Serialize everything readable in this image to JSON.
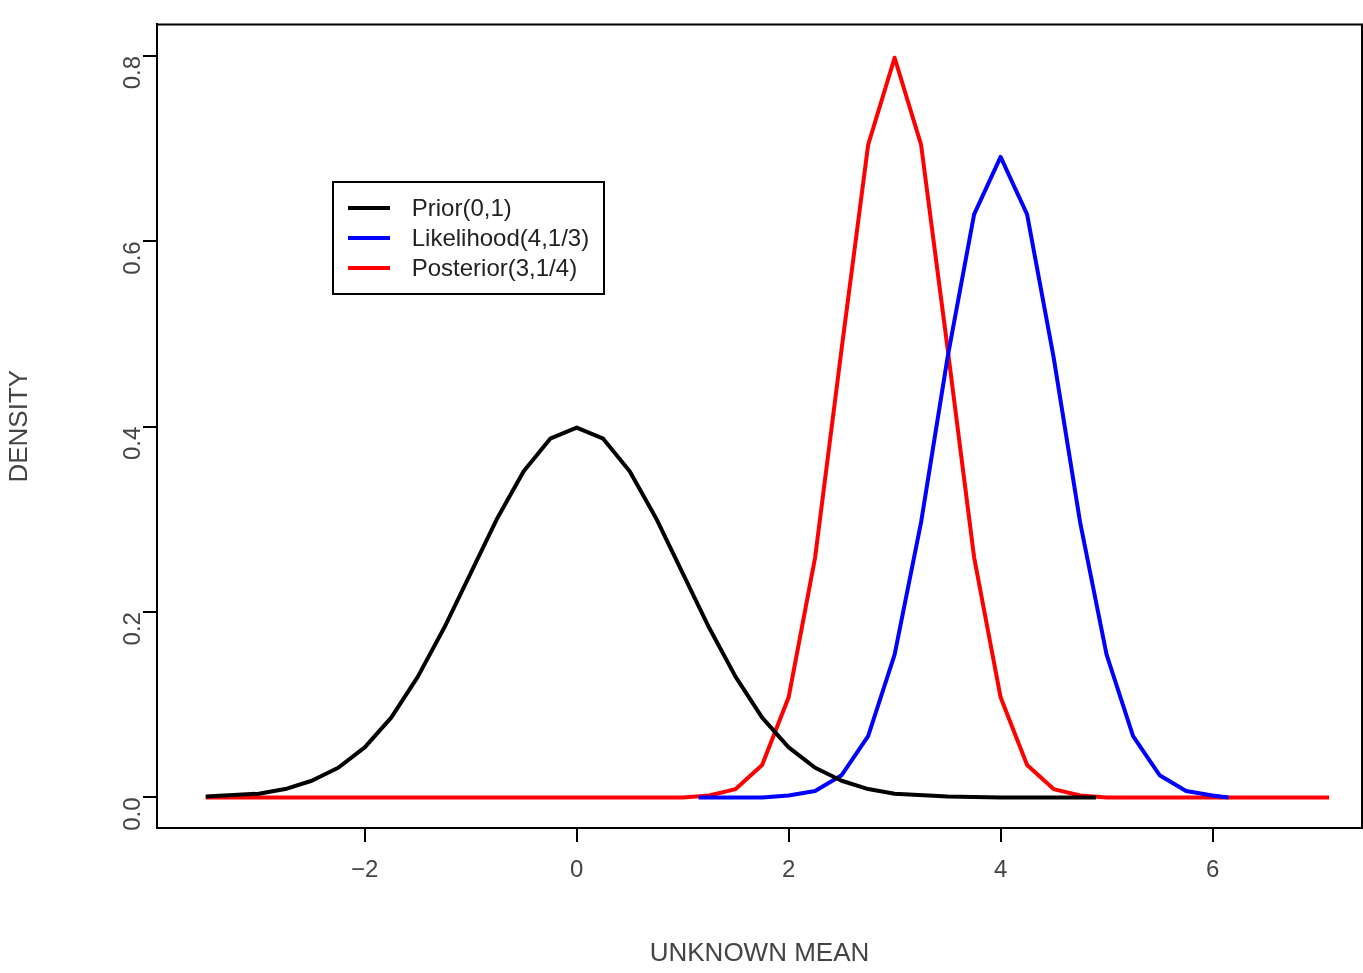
{
  "chart_data": {
    "type": "line",
    "xlabel": "UNKNOWN MEAN",
    "ylabel": "DENSITY",
    "legend": "top left",
    "xlim": [
      -3.96,
      7.41
    ],
    "ylim": [
      -0.033,
      0.834
    ],
    "xticks": [
      -2,
      0,
      2,
      4,
      6
    ],
    "yticks": [
      {
        "value": 0,
        "label": "0.0"
      },
      0.2,
      0.4,
      0.6,
      0.8
    ],
    "series": [
      {
        "name": "Prior(0,1)",
        "color": "#000000",
        "x": [
          -3.5,
          -3,
          -2.75,
          -2.5,
          -2.25,
          -2,
          -1.75,
          -1.5,
          -1.25,
          -1,
          -0.75,
          -0.5,
          -0.25,
          0,
          0.25,
          0.5,
          0.75,
          1,
          1.25,
          1.5,
          1.75,
          2,
          2.25,
          2.5,
          2.75,
          3,
          3.5,
          4,
          4.9
        ],
        "values": [
          0.001,
          0.004,
          0.009,
          0.018,
          0.032,
          0.054,
          0.086,
          0.13,
          0.183,
          0.242,
          0.301,
          0.352,
          0.387,
          0.399,
          0.387,
          0.352,
          0.301,
          0.242,
          0.183,
          0.13,
          0.086,
          0.054,
          0.032,
          0.018,
          0.009,
          0.004,
          0.001,
          0,
          0
        ]
      },
      {
        "name": "Likelihood(4,1/3)",
        "color": "#0000ff",
        "x": [
          1.15,
          1.75,
          2,
          2.25,
          2.5,
          2.75,
          3,
          3.25,
          3.5,
          3.75,
          4,
          4.25,
          4.5,
          4.75,
          5,
          5.25,
          5.5,
          5.75,
          6,
          6.15
        ],
        "values": [
          0,
          0,
          0.002,
          0.007,
          0.024,
          0.066,
          0.154,
          0.297,
          0.475,
          0.629,
          0.691,
          0.629,
          0.475,
          0.297,
          0.154,
          0.066,
          0.024,
          0.007,
          0.002,
          0
        ]
      },
      {
        "name": "Posterior(3,1/4)",
        "color": "#ff0000",
        "x": [
          -3.5,
          1,
          1.25,
          1.5,
          1.75,
          2,
          2.25,
          2.5,
          2.75,
          3,
          3.25,
          3.5,
          3.75,
          4,
          4.25,
          4.5,
          4.75,
          5,
          7.1
        ],
        "values": [
          0,
          0,
          0.002,
          0.009,
          0.035,
          0.108,
          0.259,
          0.484,
          0.704,
          0.798,
          0.704,
          0.484,
          0.259,
          0.108,
          0.035,
          0.009,
          0.002,
          0,
          0
        ]
      }
    ]
  }
}
